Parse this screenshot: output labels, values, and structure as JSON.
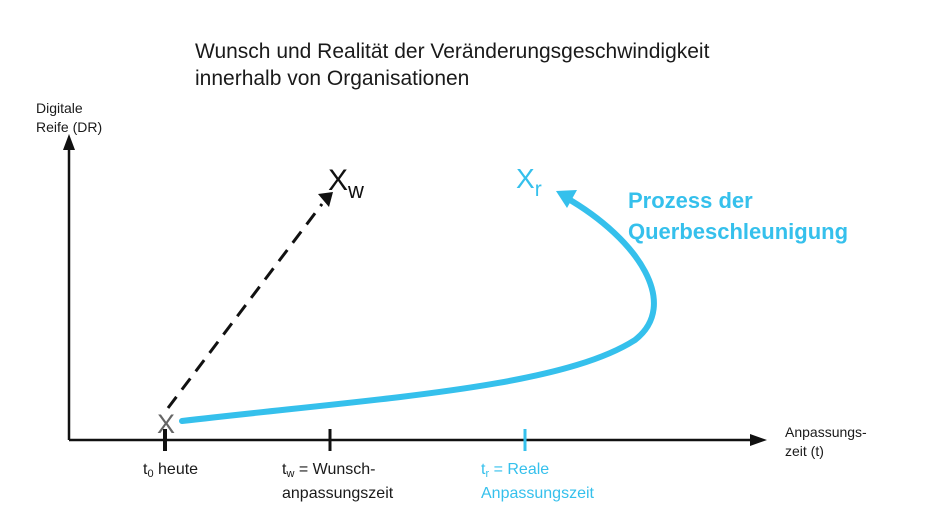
{
  "title": {
    "line1": "Wunsch und Realität der Veränderungsgeschwindigkeit",
    "line2": "innerhalb von Organisationen"
  },
  "axes": {
    "y_label_line1": "Digitale",
    "y_label_line2": "Reife (DR)",
    "x_label_line1": "Anpassungs-",
    "x_label_line2": "zeit (t)"
  },
  "points": {
    "start": "X",
    "wish_main": "X",
    "wish_sub": "w",
    "real_main": "X",
    "real_sub": "r"
  },
  "process_label": {
    "line1": "Prozess der",
    "line2": "Querbeschleunigung"
  },
  "ticks": {
    "t0": {
      "t": "t",
      "sub": "0",
      "text": " heute"
    },
    "tw": {
      "t": "t",
      "sub": "w",
      "text": " = Wunsch-",
      "line2": "anpassungszeit"
    },
    "tr": {
      "t": "t",
      "sub": "r",
      "text": " = Reale",
      "line2": "Anpassungszeit"
    }
  },
  "colors": {
    "axis": "#111111",
    "wish": "#111111",
    "real": "#35c0ec",
    "start_x": "#666666"
  }
}
